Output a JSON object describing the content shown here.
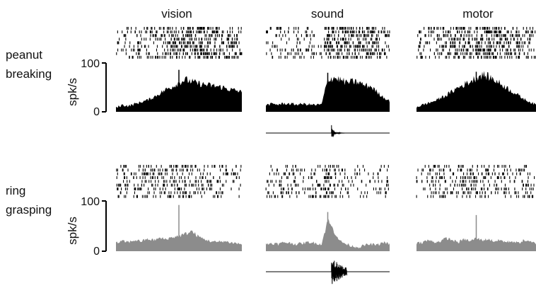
{
  "columns": [
    "vision",
    "sound",
    "motor"
  ],
  "rows": [
    {
      "label_line1": "peanut",
      "label_line2": "breaking"
    },
    {
      "label_line1": "ring",
      "label_line2": "grasping"
    }
  ],
  "colors": {
    "peanut": "#000000",
    "ring": "#8c8c8c",
    "raster": "#000000",
    "trace": "#000000"
  },
  "chart_data": [
    {
      "type": "area",
      "panel": "peanut breaking / vision",
      "ylabel": "spk/s",
      "yticks": [
        "0",
        "100"
      ],
      "ylim": [
        0,
        100
      ],
      "x": [
        0,
        0.05,
        0.1,
        0.15,
        0.2,
        0.25,
        0.3,
        0.35,
        0.4,
        0.45,
        0.5,
        0.55,
        0.6,
        0.65,
        0.7,
        0.75,
        0.8,
        0.85,
        0.9,
        0.95,
        1
      ],
      "values": [
        8,
        14,
        12,
        16,
        20,
        24,
        30,
        38,
        46,
        52,
        60,
        66,
        62,
        58,
        56,
        54,
        52,
        50,
        46,
        44,
        40
      ],
      "peak_marker": {
        "x": 0.5,
        "value": 86
      },
      "color": "#000000"
    },
    {
      "type": "area",
      "panel": "peanut breaking / sound",
      "ylim": [
        0,
        100
      ],
      "x": [
        0,
        0.05,
        0.1,
        0.15,
        0.2,
        0.25,
        0.3,
        0.35,
        0.4,
        0.45,
        0.5,
        0.55,
        0.6,
        0.65,
        0.7,
        0.75,
        0.8,
        0.85,
        0.9,
        0.95,
        1
      ],
      "values": [
        14,
        16,
        15,
        17,
        16,
        15,
        16,
        15,
        14,
        15,
        66,
        70,
        66,
        60,
        62,
        60,
        54,
        52,
        40,
        30,
        22
      ],
      "peak_marker": {
        "x": 0.5,
        "value": 80
      },
      "color": "#000000"
    },
    {
      "type": "area",
      "panel": "peanut breaking / motor",
      "ylim": [
        0,
        100
      ],
      "x": [
        0,
        0.05,
        0.1,
        0.15,
        0.2,
        0.25,
        0.3,
        0.35,
        0.4,
        0.45,
        0.5,
        0.55,
        0.6,
        0.65,
        0.7,
        0.75,
        0.8,
        0.85,
        0.9,
        0.95,
        1
      ],
      "values": [
        10,
        14,
        18,
        22,
        28,
        34,
        42,
        50,
        56,
        62,
        70,
        76,
        72,
        66,
        58,
        50,
        42,
        34,
        26,
        20,
        14
      ],
      "peak_marker": {
        "x": 0.5,
        "value": 82
      },
      "color": "#000000"
    },
    {
      "type": "area",
      "panel": "ring grasping / vision",
      "ylabel": "spk/s",
      "yticks": [
        "0",
        "100"
      ],
      "ylim": [
        0,
        100
      ],
      "x": [
        0,
        0.05,
        0.1,
        0.15,
        0.2,
        0.25,
        0.3,
        0.35,
        0.4,
        0.45,
        0.5,
        0.55,
        0.6,
        0.65,
        0.7,
        0.75,
        0.8,
        0.85,
        0.9,
        0.95,
        1
      ],
      "values": [
        16,
        20,
        18,
        22,
        20,
        24,
        22,
        26,
        24,
        28,
        30,
        34,
        40,
        30,
        24,
        20,
        18,
        20,
        18,
        16,
        14
      ],
      "peak_marker": {
        "x": 0.5,
        "value": 92
      },
      "color": "#8c8c8c"
    },
    {
      "type": "area",
      "panel": "ring grasping / sound",
      "ylim": [
        0,
        100
      ],
      "x": [
        0,
        0.05,
        0.1,
        0.15,
        0.2,
        0.25,
        0.3,
        0.35,
        0.4,
        0.45,
        0.5,
        0.55,
        0.6,
        0.65,
        0.7,
        0.75,
        0.8,
        0.85,
        0.9,
        0.95,
        1
      ],
      "values": [
        14,
        16,
        14,
        18,
        16,
        14,
        16,
        18,
        16,
        14,
        62,
        40,
        20,
        14,
        10,
        8,
        12,
        14,
        12,
        18,
        14
      ],
      "peak_marker": {
        "x": 0.5,
        "value": 78
      },
      "color": "#8c8c8c"
    },
    {
      "type": "area",
      "panel": "ring grasping / motor",
      "ylim": [
        0,
        100
      ],
      "x": [
        0,
        0.05,
        0.1,
        0.15,
        0.2,
        0.25,
        0.3,
        0.35,
        0.4,
        0.45,
        0.5,
        0.55,
        0.6,
        0.65,
        0.7,
        0.75,
        0.8,
        0.85,
        0.9,
        0.95,
        1
      ],
      "values": [
        16,
        18,
        22,
        18,
        20,
        26,
        22,
        18,
        24,
        20,
        26,
        22,
        24,
        20,
        22,
        18,
        20,
        16,
        22,
        18,
        16
      ],
      "peak_marker": {
        "x": 0.5,
        "value": 72
      },
      "color": "#8c8c8c"
    }
  ]
}
